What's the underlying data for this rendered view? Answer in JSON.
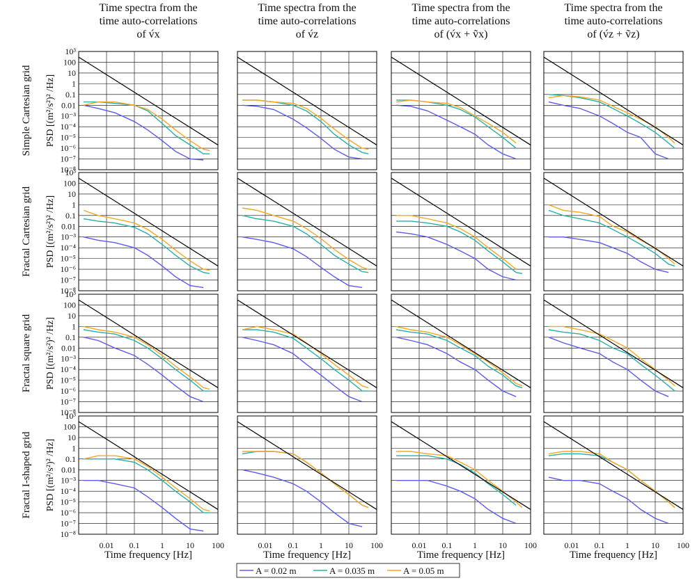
{
  "columns": [
    {
      "title": [
        "Time spectra from the",
        "time auto-correlations",
        "of v́x"
      ],
      "xlabel": "Time frequency [Hz]"
    },
    {
      "title": [
        "Time spectra from the",
        "time auto-correlations",
        "of v́z"
      ],
      "xlabel": "Time frequency [Hz]"
    },
    {
      "title": [
        "Time spectra from the",
        "time auto-correlations",
        "of (v́x + ṽx)"
      ],
      "xlabel": "Time frequency [Hz]"
    },
    {
      "title": [
        "Time spectra from the",
        "time auto-correlations",
        "of (v́z + ṽz)"
      ],
      "xlabel": "Time frequency [Hz]"
    }
  ],
  "rows": [
    {
      "label": "Simple Cartesian grid",
      "ylabel": "PSD [(m²/s²)² /Hz]"
    },
    {
      "label": "Fractal Cartesian grid",
      "ylabel": "PSD [(m²/s²)² /Hz]"
    },
    {
      "label": "Fractal square grid",
      "ylabel": "PSD [(m²/s²)² /Hz]"
    },
    {
      "label": "Fractal I-shaped grid",
      "ylabel": "PSD [(m²/s²)² /Hz]"
    }
  ],
  "axes": {
    "xlim": [
      0.001,
      100
    ],
    "ylim": [
      1e-08,
      1000
    ],
    "log_x": true,
    "log_y": true,
    "grid": true,
    "xticks": [
      0.01,
      0.1,
      1,
      10,
      100
    ],
    "yticks": [
      {
        "value": 1e-08,
        "label": "10⁻⁸"
      },
      {
        "value": 1e-07,
        "label": "10⁻⁷"
      },
      {
        "value": 1e-06,
        "label": "10⁻⁶"
      },
      {
        "value": 1e-05,
        "label": "10⁻⁵"
      },
      {
        "value": 0.0001,
        "label": "10⁻⁴"
      },
      {
        "value": 0.001,
        "label": "10⁻³"
      },
      0.01,
      0.1,
      1,
      10,
      100,
      {
        "value": 1000,
        "label": "10³"
      }
    ]
  },
  "reference_line": {
    "x": [
      0.001,
      100
    ],
    "y": [
      300,
      2e-06
    ],
    "color": "#000000"
  },
  "legend": {
    "entries": [
      {
        "label": "A = 0.02 m",
        "color": "#5b5bef"
      },
      {
        "label": "A = 0.035 m",
        "color": "#26b0a6"
      },
      {
        "label": "A = 0.05 m",
        "color": "#f5a623"
      }
    ]
  },
  "chart_data": [
    {
      "type": "line",
      "x": [
        0.0015,
        0.005,
        0.02,
        0.1,
        0.3,
        1,
        3,
        10,
        30,
        50
      ],
      "series": [
        {
          "values": [
            0.01,
            0.005,
            0.002,
            0.0003,
            5e-05,
            5e-06,
            5e-07,
            1e-07,
            8e-08,
            null
          ]
        },
        {
          "values": [
            0.02,
            0.02,
            0.015,
            0.01,
            0.003,
            0.0002,
            1.5e-05,
            2e-06,
            3e-07,
            3e-07
          ]
        },
        {
          "values": [
            0.01,
            0.02,
            0.02,
            0.01,
            0.004,
            0.0005,
            5e-05,
            5e-06,
            8e-07,
            6e-07
          ]
        }
      ]
    },
    {
      "type": "line",
      "x": [
        0.0015,
        0.005,
        0.02,
        0.1,
        0.3,
        1,
        3,
        10,
        30,
        50
      ],
      "series": [
        {
          "values": [
            0.01,
            0.008,
            0.004,
            0.0005,
            8e-05,
            8e-06,
            8e-07,
            1.5e-07,
            1e-07,
            null
          ]
        },
        {
          "values": [
            0.03,
            0.03,
            0.02,
            0.01,
            0.003,
            0.0003,
            2e-05,
            2e-06,
            4e-07,
            3e-07
          ]
        },
        {
          "values": [
            0.03,
            0.03,
            0.02,
            0.015,
            0.005,
            0.0006,
            6e-05,
            6e-06,
            1e-06,
            8e-07
          ]
        }
      ]
    },
    {
      "type": "line",
      "x": [
        0.0015,
        0.005,
        0.02,
        0.1,
        0.3,
        1,
        3,
        10,
        30,
        50
      ],
      "series": [
        {
          "values": [
            0.01,
            0.008,
            0.003,
            0.0004,
            0.0001,
            2e-05,
            2e-06,
            3e-07,
            1e-07,
            null
          ]
        },
        {
          "values": [
            0.03,
            0.03,
            0.02,
            0.01,
            0.004,
            0.0008,
            0.0001,
            1e-05,
            1e-06,
            null
          ]
        },
        {
          "values": [
            0.02,
            0.03,
            0.02,
            0.015,
            0.006,
            0.001,
            0.0002,
            3e-05,
            3e-06,
            null
          ]
        }
      ]
    },
    {
      "type": "line",
      "x": [
        0.0015,
        0.005,
        0.02,
        0.1,
        0.3,
        1,
        3,
        10,
        30,
        50
      ],
      "series": [
        {
          "values": [
            0.02,
            0.01,
            0.005,
            0.001,
            0.0002,
            3e-05,
            1e-05,
            3e-07,
            1e-07,
            null
          ]
        },
        {
          "values": [
            0.1,
            0.08,
            0.05,
            0.02,
            0.005,
            0.001,
            0.0002,
            3e-05,
            3e-06,
            1e-06
          ]
        },
        {
          "values": [
            0.05,
            0.08,
            0.06,
            0.03,
            0.008,
            0.002,
            0.0005,
            0.0001,
            1e-05,
            3e-06
          ]
        }
      ]
    },
    {
      "type": "line",
      "x": [
        0.0015,
        0.005,
        0.02,
        0.1,
        0.3,
        1,
        3,
        10,
        30,
        50
      ],
      "series": [
        {
          "values": [
            0.001,
            0.0005,
            0.0003,
            0.0001,
            2e-05,
            2e-06,
            2e-07,
            3e-08,
            2e-08,
            null
          ]
        },
        {
          "values": [
            0.05,
            0.03,
            0.02,
            0.008,
            0.002,
            0.0002,
            2e-05,
            2e-06,
            5e-07,
            4e-07
          ]
        },
        {
          "values": [
            0.3,
            0.1,
            0.05,
            0.02,
            0.005,
            0.0006,
            6e-05,
            6e-06,
            1e-06,
            8e-07
          ]
        }
      ]
    },
    {
      "type": "line",
      "x": [
        0.0015,
        0.005,
        0.02,
        0.1,
        0.3,
        1,
        3,
        10,
        30,
        50
      ],
      "series": [
        {
          "values": [
            0.001,
            0.0006,
            0.0003,
            8e-05,
            1.5e-05,
            1.5e-06,
            2e-07,
            3e-08,
            2e-08,
            null
          ]
        },
        {
          "values": [
            0.1,
            0.05,
            0.03,
            0.01,
            0.002,
            0.0002,
            2e-05,
            3e-06,
            6e-07,
            5e-07
          ]
        },
        {
          "values": [
            0.5,
            0.3,
            0.1,
            0.03,
            0.006,
            0.0007,
            7e-05,
            8e-06,
            1.5e-06,
            1e-06
          ]
        }
      ]
    },
    {
      "type": "line",
      "x": [
        0.0015,
        0.005,
        0.02,
        0.1,
        0.3,
        1,
        3,
        10,
        30,
        50
      ],
      "series": [
        {
          "values": [
            0.003,
            0.002,
            0.001,
            0.0002,
            5e-05,
            1e-05,
            1e-06,
            2e-07,
            1e-07,
            null
          ]
        },
        {
          "values": [
            0.03,
            0.03,
            0.02,
            0.01,
            0.003,
            0.0005,
            5e-05,
            5e-06,
            5e-07,
            4e-07
          ]
        },
        {
          "values": [
            0.1,
            0.1,
            0.05,
            0.02,
            0.006,
            0.001,
            0.0001,
            1e-05,
            1e-06,
            null
          ]
        }
      ]
    },
    {
      "type": "line",
      "x": [
        0.0015,
        0.005,
        0.02,
        0.1,
        0.3,
        1,
        3,
        10,
        30,
        50
      ],
      "series": [
        {
          "values": [
            0.001,
            0.001,
            0.0006,
            0.0003,
            0.0001,
            3e-05,
            5e-06,
            1e-06,
            5e-07,
            null
          ]
        },
        {
          "values": [
            0.3,
            0.1,
            0.05,
            0.02,
            0.005,
            0.001,
            0.0002,
            3e-05,
            3e-06,
            2e-06
          ]
        },
        {
          "values": [
            1,
            0.3,
            0.2,
            0.08,
            0.01,
            0.003,
            0.0005,
            0.0001,
            1e-05,
            3e-06
          ]
        }
      ]
    },
    {
      "type": "line",
      "x": [
        0.0015,
        0.005,
        0.02,
        0.1,
        0.3,
        1,
        3,
        10,
        30,
        50
      ],
      "series": [
        {
          "values": [
            0.1,
            0.05,
            0.01,
            0.002,
            0.0003,
            3e-05,
            3e-06,
            3e-07,
            1e-07,
            null
          ]
        },
        {
          "values": [
            0.5,
            0.3,
            0.2,
            0.05,
            0.01,
            0.001,
            0.0001,
            1e-05,
            1e-06,
            1e-06
          ]
        },
        {
          "values": [
            1,
            0.5,
            0.3,
            0.1,
            0.02,
            0.002,
            0.0002,
            2e-05,
            2e-06,
            1.5e-06
          ]
        }
      ]
    },
    {
      "type": "line",
      "x": [
        0.0015,
        0.005,
        0.02,
        0.1,
        0.3,
        1,
        3,
        10,
        30,
        50
      ],
      "series": [
        {
          "values": [
            0.1,
            0.05,
            0.02,
            0.003,
            0.0003,
            3e-05,
            3e-06,
            3e-07,
            1e-07,
            null
          ]
        },
        {
          "values": [
            0.5,
            0.5,
            0.3,
            0.08,
            0.01,
            0.001,
            0.0001,
            1e-05,
            1e-06,
            1e-06
          ]
        },
        {
          "values": [
            0.5,
            1,
            0.5,
            0.2,
            0.03,
            0.003,
            0.0003,
            3e-05,
            3e-06,
            2e-06
          ]
        }
      ]
    },
    {
      "type": "line",
      "x": [
        0.0015,
        0.005,
        0.02,
        0.1,
        0.3,
        1,
        3,
        10,
        30,
        50
      ],
      "series": [
        {
          "values": [
            0.1,
            0.05,
            0.02,
            0.003,
            0.0005,
            0.0001,
            1e-05,
            1e-06,
            3e-07,
            null
          ]
        },
        {
          "values": [
            0.5,
            0.3,
            0.2,
            0.05,
            0.01,
            0.002,
            0.0002,
            3e-05,
            3e-06,
            2e-06
          ]
        },
        {
          "values": [
            1,
            0.5,
            0.3,
            0.1,
            0.02,
            0.003,
            0.0005,
            5e-05,
            5e-06,
            3e-06
          ]
        }
      ]
    },
    {
      "type": "line",
      "x": [
        0.0015,
        0.005,
        0.02,
        0.1,
        0.3,
        1,
        3,
        10,
        30,
        50
      ],
      "series": [
        {
          "values": [
            0.1,
            0.03,
            0.01,
            0.003,
            0.0005,
            0.0001,
            1e-05,
            1e-06,
            3e-07,
            null
          ]
        },
        {
          "values": [
            0.5,
            0.3,
            0.2,
            0.05,
            0.01,
            0.003,
            0.0003,
            3e-05,
            3e-06,
            1e-06
          ]
        },
        {
          "values": [
            1,
            1,
            0.5,
            0.2,
            0.05,
            0.01,
            0.001,
            0.0001,
            1e-05,
            3e-06
          ]
        }
      ]
    },
    {
      "type": "line",
      "x": [
        0.0015,
        0.005,
        0.02,
        0.1,
        0.3,
        1,
        3,
        10,
        30,
        50
      ],
      "series": [
        {
          "values": [
            0.001,
            0.001,
            0.0005,
            0.0002,
            3e-05,
            3e-06,
            3e-07,
            3e-08,
            2e-08,
            null
          ]
        },
        {
          "values": [
            0.1,
            0.1,
            0.1,
            0.05,
            0.01,
            0.001,
            0.0001,
            1e-05,
            1e-06,
            1e-06
          ]
        },
        {
          "values": [
            0.1,
            0.2,
            0.2,
            0.1,
            0.02,
            0.002,
            0.0002,
            2e-05,
            2e-06,
            1.5e-06
          ]
        }
      ]
    },
    {
      "type": "line",
      "x": [
        0.0015,
        0.005,
        0.02,
        0.1,
        0.3,
        1,
        3,
        10,
        30,
        50
      ],
      "series": [
        {
          "values": [
            0.01,
            0.005,
            0.002,
            0.0005,
            0.0001,
            1e-05,
            1e-06,
            1e-07,
            5e-08,
            null
          ]
        },
        {
          "values": [
            0.3,
            0.5,
            0.5,
            0.3,
            0.05,
            0.005,
            0.0005,
            5e-05,
            5e-06,
            3e-06
          ]
        },
        {
          "values": [
            0.5,
            0.5,
            0.5,
            0.3,
            0.05,
            0.005,
            0.0005,
            5e-05,
            5e-06,
            3e-06
          ]
        }
      ]
    },
    {
      "type": "line",
      "x": [
        0.0015,
        0.005,
        0.02,
        0.1,
        0.3,
        1,
        3,
        10,
        30,
        50
      ],
      "series": [
        {
          "values": [
            0.001,
            0.001,
            0.001,
            0.0003,
            0.0001,
            2e-05,
            2e-06,
            3e-07,
            1e-07,
            null
          ]
        },
        {
          "values": [
            0.2,
            0.2,
            0.2,
            0.1,
            0.03,
            0.005,
            0.0005,
            5e-05,
            5e-06,
            null
          ]
        },
        {
          "values": [
            0.5,
            0.5,
            0.3,
            0.2,
            0.05,
            0.01,
            0.001,
            0.0001,
            1e-05,
            3e-06
          ]
        }
      ]
    },
    {
      "type": "line",
      "x": [
        0.0015,
        0.005,
        0.02,
        0.1,
        0.3,
        1,
        3,
        10,
        30,
        50
      ],
      "series": [
        {
          "values": [
            0.002,
            0.001,
            0.001,
            0.0005,
            0.0001,
            2e-05,
            2e-06,
            3e-07,
            1e-07,
            null
          ]
        },
        {
          "values": [
            0.2,
            0.3,
            0.3,
            0.2,
            0.05,
            0.01,
            0.001,
            0.0001,
            1e-05,
            3e-06
          ]
        },
        {
          "values": [
            0.3,
            0.5,
            0.5,
            0.3,
            0.05,
            0.01,
            0.001,
            0.0001,
            1e-05,
            3e-06
          ]
        }
      ]
    }
  ]
}
